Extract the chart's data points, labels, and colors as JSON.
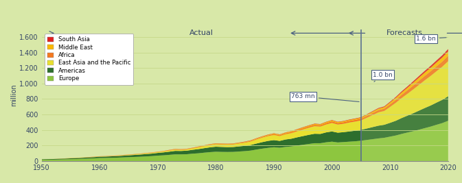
{
  "title_actual": "Actual",
  "title_forecasts": "Forecasts",
  "ylabel": "million",
  "background_color": "#d8e8a8",
  "plot_bg_color": "#d8e8a8",
  "grid_color": "#c8d890",
  "divider_year": 2005,
  "years_actual": [
    1950,
    1951,
    1952,
    1953,
    1954,
    1955,
    1956,
    1957,
    1958,
    1959,
    1960,
    1961,
    1962,
    1963,
    1964,
    1965,
    1966,
    1967,
    1968,
    1969,
    1970,
    1971,
    1972,
    1973,
    1974,
    1975,
    1976,
    1977,
    1978,
    1979,
    1980,
    1981,
    1982,
    1983,
    1984,
    1985,
    1986,
    1987,
    1988,
    1989,
    1990,
    1991,
    1992,
    1993,
    1994,
    1995,
    1996,
    1997,
    1998,
    1999,
    2000,
    2001,
    2002,
    2003,
    2004,
    2005
  ],
  "years_forecast": [
    2005,
    2006,
    2007,
    2008,
    2009,
    2010,
    2011,
    2012,
    2013,
    2014,
    2015,
    2016,
    2017,
    2018,
    2019,
    2020
  ],
  "europe_actual": [
    16,
    17,
    18,
    20,
    22,
    24,
    26,
    29,
    32,
    35,
    39,
    40,
    42,
    44,
    47,
    50,
    53,
    56,
    60,
    64,
    70,
    74,
    80,
    86,
    86,
    88,
    95,
    100,
    108,
    115,
    120,
    118,
    117,
    118,
    123,
    128,
    135,
    148,
    160,
    170,
    178,
    172,
    182,
    188,
    200,
    210,
    220,
    230,
    230,
    242,
    250,
    240,
    245,
    250,
    255,
    262
  ],
  "americas_actual": [
    7,
    8,
    8,
    9,
    10,
    11,
    12,
    13,
    14,
    15,
    17,
    18,
    19,
    20,
    22,
    24,
    26,
    28,
    30,
    32,
    35,
    38,
    41,
    45,
    44,
    46,
    50,
    54,
    58,
    62,
    65,
    64,
    62,
    63,
    66,
    68,
    72,
    78,
    84,
    90,
    92,
    88,
    96,
    100,
    106,
    112,
    118,
    122,
    120,
    128,
    132,
    126,
    128,
    132,
    136,
    140
  ],
  "east_asia_actual": [
    1,
    1,
    1,
    1,
    2,
    2,
    2,
    2,
    2,
    3,
    3,
    3,
    4,
    4,
    5,
    5,
    6,
    7,
    8,
    9,
    10,
    12,
    14,
    16,
    14,
    15,
    18,
    22,
    26,
    30,
    32,
    32,
    33,
    34,
    37,
    40,
    45,
    52,
    58,
    62,
    66,
    62,
    68,
    72,
    78,
    85,
    92,
    98,
    95,
    102,
    110,
    105,
    108,
    115,
    118,
    122
  ],
  "africa_actual": [
    0,
    0,
    0,
    1,
    1,
    1,
    1,
    1,
    1,
    1,
    1,
    1,
    2,
    2,
    2,
    2,
    2,
    2,
    3,
    3,
    3,
    3,
    4,
    4,
    4,
    4,
    4,
    5,
    5,
    5,
    6,
    6,
    6,
    6,
    6,
    7,
    7,
    8,
    9,
    10,
    11,
    11,
    12,
    13,
    14,
    15,
    16,
    17,
    17,
    18,
    20,
    19,
    20,
    21,
    22,
    23
  ],
  "middle_east_actual": [
    0,
    0,
    0,
    0,
    0,
    1,
    1,
    1,
    1,
    1,
    1,
    1,
    1,
    1,
    2,
    2,
    2,
    2,
    2,
    2,
    2,
    2,
    3,
    3,
    3,
    3,
    3,
    4,
    4,
    4,
    4,
    4,
    4,
    4,
    5,
    5,
    5,
    6,
    6,
    7,
    8,
    8,
    8,
    9,
    9,
    10,
    10,
    11,
    11,
    12,
    13,
    12,
    12,
    12,
    13,
    13
  ],
  "south_asia_actual": [
    0,
    0,
    0,
    0,
    0,
    0,
    0,
    0,
    1,
    1,
    1,
    1,
    1,
    1,
    1,
    1,
    1,
    1,
    1,
    1,
    1,
    1,
    2,
    2,
    2,
    2,
    2,
    2,
    2,
    2,
    2,
    2,
    2,
    2,
    2,
    3,
    3,
    3,
    3,
    3,
    3,
    3,
    3,
    3,
    4,
    4,
    4,
    4,
    4,
    4,
    4,
    4,
    4,
    5,
    5,
    5
  ],
  "europe_forecast": [
    262,
    272,
    282,
    292,
    300,
    315,
    330,
    350,
    368,
    385,
    405,
    425,
    445,
    468,
    490,
    520
  ],
  "americas_forecast": [
    140,
    148,
    156,
    164,
    168,
    178,
    190,
    205,
    218,
    232,
    246,
    260,
    272,
    286,
    300,
    316
  ],
  "east_asia_forecast": [
    122,
    138,
    155,
    172,
    178,
    205,
    232,
    258,
    282,
    308,
    333,
    358,
    382,
    405,
    428,
    452
  ],
  "africa_forecast": [
    23,
    25,
    27,
    29,
    30,
    34,
    38,
    42,
    46,
    50,
    54,
    57,
    60,
    63,
    66,
    70
  ],
  "middle_east_forecast": [
    13,
    15,
    17,
    19,
    20,
    23,
    26,
    30,
    33,
    37,
    40,
    43,
    46,
    50,
    53,
    57
  ],
  "south_asia_forecast": [
    5,
    6,
    7,
    8,
    9,
    10,
    12,
    14,
    16,
    18,
    20,
    22,
    24,
    26,
    28,
    30
  ],
  "colors": {
    "europe": "#8dc63f",
    "americas": "#2d6e2d",
    "east_asia": "#e8e030",
    "africa": "#f47920",
    "middle_east": "#fbb800",
    "south_asia": "#e02020"
  },
  "legend_labels": [
    "South Asia",
    "Middle East",
    "Africa",
    "East Asia and the Pacific",
    "Americas",
    "Europe"
  ],
  "legend_colors": [
    "#e02020",
    "#fbb800",
    "#f47920",
    "#e8e030",
    "#2d6e2d",
    "#8dc63f"
  ],
  "yticks": [
    0,
    200,
    400,
    600,
    800,
    1000,
    1200,
    1400,
    1600
  ],
  "ytick_labels": [
    "0",
    "200",
    "400",
    "600",
    "800",
    "1.000",
    "1.200",
    "1.400",
    "1.600"
  ],
  "xticks": [
    1950,
    1960,
    1970,
    1980,
    1990,
    2000,
    2010,
    2020
  ],
  "xlim": [
    1950,
    2020
  ],
  "ylim": [
    0,
    1700
  ]
}
